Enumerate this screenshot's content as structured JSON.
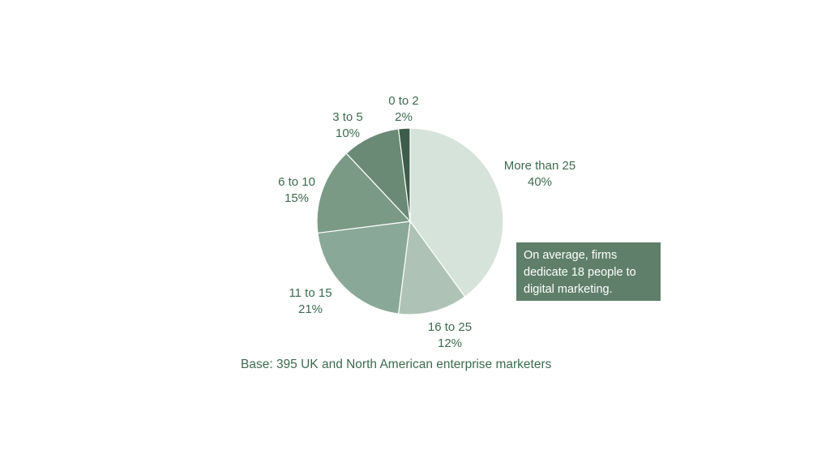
{
  "chart_data": {
    "type": "pie",
    "slices": [
      {
        "label": "More than 25",
        "value": 40,
        "value_label": "40%",
        "color": "#d6e3da"
      },
      {
        "label": "16 to 25",
        "value": 12,
        "value_label": "12%",
        "color": "#aec3b5"
      },
      {
        "label": "11 to 15",
        "value": 21,
        "value_label": "21%",
        "color": "#8aa897"
      },
      {
        "label": "6 to 10",
        "value": 15,
        "value_label": "15%",
        "color": "#7a9a86"
      },
      {
        "label": "3 to 5",
        "value": 10,
        "value_label": "10%",
        "color": "#6a8a75"
      },
      {
        "label": "0 to 2",
        "value": 2,
        "value_label": "2%",
        "color": "#3d5c4a"
      }
    ],
    "start_angle_deg": 0,
    "direction": "clockwise",
    "legend": "none",
    "annotation": "On average, firms dedicate 18 people to digital marketing.",
    "footnote": "Base: 395 UK and North American enterprise marketers"
  },
  "colors": {
    "label_text": "#3d6b4f",
    "callout_background": "#5f7f6b",
    "callout_text": "#ffffff",
    "background": "#ffffff"
  }
}
